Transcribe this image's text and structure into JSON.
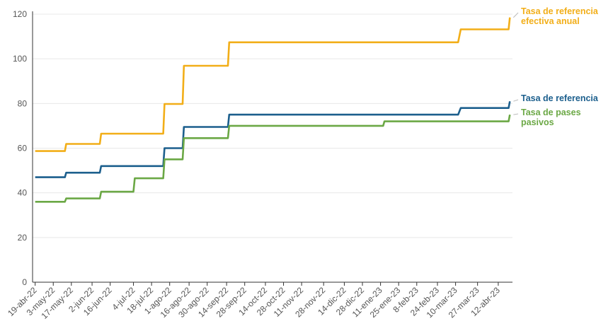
{
  "chart_data": {
    "type": "line",
    "title": "",
    "xlabel": "",
    "ylabel": "",
    "ylim": [
      0,
      120
    ],
    "yticks": [
      0,
      20,
      40,
      60,
      80,
      100,
      120
    ],
    "grid": true,
    "legend": "direct labels at right end of lines",
    "x_tick_labels": [
      "19-abr-22",
      "3-may-22",
      "17-may-22",
      "2-jun-22",
      "16-jun-22",
      "4-jul-22",
      "18-jul-22",
      "1-ago-22",
      "16-ago-22",
      "30-ago-22",
      "14-sep-22",
      "28-sep-22",
      "14-oct-22",
      "28-oct-22",
      "11-nov-22",
      "28-nov-22",
      "14-dic-22",
      "28-dic-22",
      "11-ene-23",
      "25-ene-23",
      "8-feb-23",
      "24-feb-23",
      "10-mar-23",
      "27-mar-23",
      "12-abr-23"
    ],
    "series": [
      {
        "name": "Tasa de referencia efectiva anual",
        "label_lines": [
          "Tasa de referencia",
          "efectiva anual"
        ],
        "color": "#F2AE18",
        "x": [
          "2022-04-19",
          "2022-05-12",
          "2022-05-13",
          "2022-06-08",
          "2022-06-09",
          "2022-07-27",
          "2022-07-28",
          "2022-08-11",
          "2022-08-12",
          "2022-09-15",
          "2022-09-16",
          "2023-03-12",
          "2023-03-14",
          "2023-04-20",
          "2023-04-21"
        ],
        "values": [
          58.7,
          58.7,
          61.9,
          61.9,
          66.5,
          66.5,
          79.8,
          79.8,
          96.9,
          96.9,
          107.4,
          107.4,
          113.2,
          113.2,
          118.5
        ]
      },
      {
        "name": "Tasa de referencia",
        "label_lines": [
          "Tasa de referencia"
        ],
        "color": "#1C5F8D",
        "x": [
          "2022-04-19",
          "2022-05-12",
          "2022-05-13",
          "2022-06-08",
          "2022-06-09",
          "2022-07-27",
          "2022-07-28",
          "2022-08-11",
          "2022-08-12",
          "2022-09-15",
          "2022-09-16",
          "2023-03-12",
          "2023-03-14",
          "2023-04-20",
          "2023-04-21"
        ],
        "values": [
          47,
          47,
          49,
          49,
          52,
          52,
          60,
          60,
          69.5,
          69.5,
          75,
          75,
          78,
          78,
          81
        ]
      },
      {
        "name": "Tasa de pases pasivos",
        "label_lines": [
          "Tasa de pases",
          "pasivos"
        ],
        "color": "#6BA845",
        "x": [
          "2022-04-19",
          "2022-05-12",
          "2022-05-13",
          "2022-06-08",
          "2022-06-09",
          "2022-07-04",
          "2022-07-05",
          "2022-07-27",
          "2022-07-28",
          "2022-08-11",
          "2022-08-12",
          "2022-09-15",
          "2022-09-16",
          "2023-01-13",
          "2023-01-14",
          "2023-04-20",
          "2023-04-21"
        ],
        "values": [
          36,
          36,
          37.5,
          37.5,
          40.5,
          40.5,
          46.5,
          46.5,
          55,
          55,
          64.5,
          64.5,
          70,
          70,
          72,
          72,
          75
        ]
      }
    ]
  }
}
